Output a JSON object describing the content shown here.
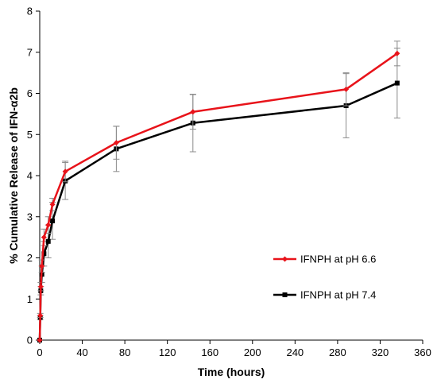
{
  "chart_data": {
    "type": "line",
    "title": "",
    "xlabel": "Time  (hours)",
    "ylabel": "% Cumulative Release of IFN-α2b",
    "xlim": [
      0,
      360
    ],
    "ylim": [
      0,
      8
    ],
    "xticks": [
      0,
      40,
      80,
      120,
      160,
      200,
      240,
      280,
      320,
      360
    ],
    "yticks": [
      0,
      1,
      2,
      3,
      4,
      5,
      6,
      7,
      8
    ],
    "x_tick_labels": [
      "0",
      "40",
      "80",
      "120",
      "160",
      "200",
      "240",
      "280",
      "320",
      "360"
    ],
    "y_tick_labels": [
      "0",
      "1",
      "2",
      "3",
      "4",
      "5",
      "6",
      "7",
      "8"
    ],
    "grid": false,
    "legend_position": "right",
    "series": [
      {
        "name": "IFNPH at pH 6.6",
        "color": "#e8131a",
        "marker": "diamond",
        "x": [
          0,
          0.5,
          1,
          2,
          4,
          8,
          12,
          24,
          72,
          144,
          288,
          336
        ],
        "y": [
          0,
          0.6,
          1.3,
          1.8,
          2.5,
          2.8,
          3.3,
          4.1,
          4.8,
          5.55,
          6.1,
          6.97
        ],
        "error": [
          0,
          0.05,
          0.1,
          0.15,
          0.2,
          0.2,
          0.15,
          0.25,
          0.4,
          0.42,
          0.4,
          0.3
        ]
      },
      {
        "name": "IFNPH at pH 7.4",
        "color": "#000000",
        "marker": "square",
        "x": [
          0,
          0.5,
          1,
          2,
          4,
          8,
          12,
          24,
          72,
          144,
          288,
          336
        ],
        "y": [
          0,
          0.55,
          1.2,
          1.6,
          2.1,
          2.4,
          2.9,
          3.87,
          4.65,
          5.28,
          5.7,
          6.25
        ],
        "error": [
          0,
          0.05,
          0.1,
          0.2,
          0.3,
          0.4,
          0.45,
          0.45,
          0.55,
          0.7,
          0.78,
          0.85
        ]
      }
    ]
  }
}
